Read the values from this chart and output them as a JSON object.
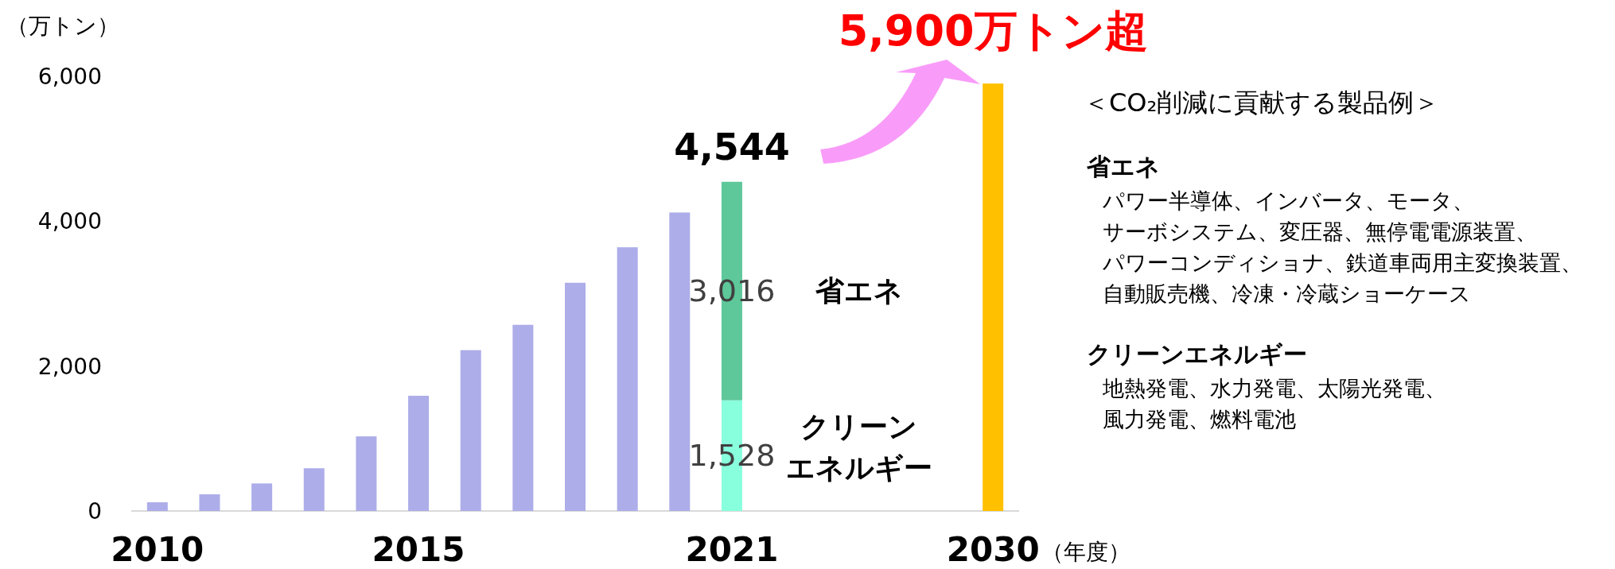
{
  "chart_data": [
    {
      "type": "bar",
      "stacked": true,
      "ylabel": "（万トン）",
      "xlabel": "（年度）",
      "categories": [
        "2010",
        null,
        null,
        null,
        null,
        "2015",
        null,
        null,
        null,
        null,
        null,
        "2021",
        null,
        null,
        null,
        null,
        "2030"
      ],
      "ylim": [
        0,
        6000
      ],
      "yticks": [
        {
          "value": 0,
          "label": "0"
        },
        {
          "value": 2000,
          "label": "2,000"
        },
        {
          "value": 4000,
          "label": "4,000"
        },
        {
          "value": 6000,
          "label": "6,000"
        }
      ],
      "series": [
        {
          "color": "#adadea",
          "values": [
            120,
            230,
            380,
            590,
            1030,
            1590,
            2220,
            2570,
            3150,
            3640,
            4120,
            null,
            null,
            null,
            null,
            null,
            null
          ]
        },
        {
          "name": "クリーンエネルギー",
          "color": "#88ffdd",
          "values": [
            null,
            null,
            null,
            null,
            null,
            null,
            null,
            null,
            null,
            null,
            null,
            1528,
            null,
            null,
            null,
            null,
            null
          ],
          "value_labels": [
            null,
            null,
            null,
            null,
            null,
            null,
            null,
            null,
            null,
            null,
            null,
            "1,528",
            null,
            null,
            null,
            null,
            null
          ]
        },
        {
          "name": "省エネ",
          "color": "#5ec89a",
          "values": [
            null,
            null,
            null,
            null,
            null,
            null,
            null,
            null,
            null,
            null,
            null,
            3016,
            null,
            null,
            null,
            null,
            null
          ],
          "value_labels": [
            null,
            null,
            null,
            null,
            null,
            null,
            null,
            null,
            null,
            null,
            null,
            "3,016",
            null,
            null,
            null,
            null,
            null
          ]
        },
        {
          "color": "#ffc000",
          "values": [
            null,
            null,
            null,
            null,
            null,
            null,
            null,
            null,
            null,
            null,
            null,
            null,
            null,
            null,
            null,
            null,
            5900
          ]
        }
      ],
      "totals": [
        null,
        null,
        null,
        null,
        null,
        null,
        null,
        null,
        null,
        null,
        null,
        "4,544",
        null,
        null,
        null,
        null,
        null
      ],
      "annotations": [
        {
          "text": "5,900万トン超",
          "x": "2030",
          "y": 5900
        }
      ]
    },
    {
      "type": "other",
      "title": "＜CO₂削減に貢献する製品例＞"
    },
    {
      "type": "other",
      "title": "省エネ",
      "annotations": [
        "パワー半導体、インバータ、モータ、",
        "サーボシステム、変圧器、無停電電源装置、",
        "パワーコンディショナ、鉄道車両用主変換装置、",
        "自動販売機、冷凍・冷蔵ショーケース"
      ]
    },
    {
      "type": "other",
      "title": "クリーンエネルギー",
      "annotations": [
        "地熱発電、水力発電、太陽光発電、",
        "風力発電、燃料電池"
      ]
    }
  ]
}
